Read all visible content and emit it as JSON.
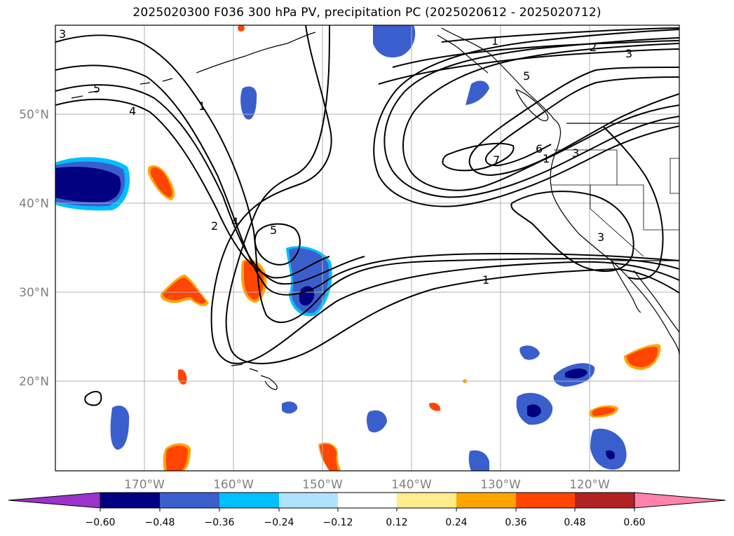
{
  "title": "2025020300 F036 300 hPa PV, precipitation PC (2025020612 - 2025020712)",
  "map": {
    "lon_labels": [
      "170°W",
      "160°W",
      "150°W",
      "140°W",
      "130°W",
      "120°W"
    ],
    "lat_labels": [
      "50°N",
      "40°N",
      "30°N",
      "20°N"
    ],
    "contour_labels": [
      "3",
      "5",
      "4",
      "1",
      "2",
      "4",
      "5",
      "1",
      "2",
      "3",
      "5",
      "6",
      "3",
      "7",
      "1",
      "3",
      "1"
    ]
  },
  "colorbar": {
    "ticks": [
      "−0.60",
      "−0.48",
      "−0.36",
      "−0.24",
      "−0.12",
      "0.12",
      "0.24",
      "0.36",
      "0.48",
      "0.60"
    ],
    "colors": [
      "#9933cc",
      "#000080",
      "#3a5fcd",
      "#00bfff",
      "#b0e2ff",
      "#ffffff",
      "#ffec8b",
      "#ffa500",
      "#ff4500",
      "#b22222",
      "#ff82ab"
    ]
  },
  "colors": {
    "strong_negative": "#000080",
    "negative": "#3a5fcd",
    "weak_negative": "#00bfff",
    "positive": "#ff4500",
    "weak_positive": "#ffa500",
    "grid": "#b0b0b0"
  }
}
